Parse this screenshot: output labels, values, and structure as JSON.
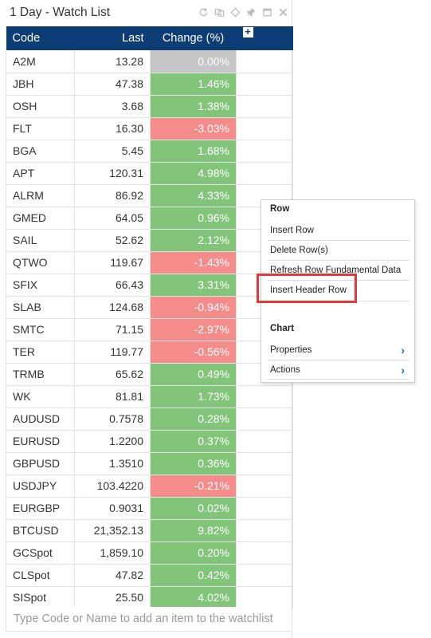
{
  "window": {
    "title": "1 Day - Watch List",
    "icons": [
      "refresh-icon",
      "link-icon",
      "diamond-icon",
      "pin-icon",
      "maximize-icon",
      "close-icon"
    ]
  },
  "table": {
    "headers": {
      "code": "Code",
      "last": "Last",
      "change": "Change (%)",
      "add": "+"
    },
    "rows": [
      {
        "code": "A2M",
        "last": "13.28",
        "change": "0.00%",
        "dir": "flat"
      },
      {
        "code": "JBH",
        "last": "47.38",
        "change": "1.46%",
        "dir": "up"
      },
      {
        "code": "OSH",
        "last": "3.68",
        "change": "1.38%",
        "dir": "up"
      },
      {
        "code": "FLT",
        "last": "16.30",
        "change": "-3.03%",
        "dir": "down"
      },
      {
        "code": "BGA",
        "last": "5.45",
        "change": "1.68%",
        "dir": "up"
      },
      {
        "code": "APT",
        "last": "120.31",
        "change": "4.98%",
        "dir": "up"
      },
      {
        "code": "ALRM",
        "last": "86.92",
        "change": "4.33%",
        "dir": "up"
      },
      {
        "code": "GMED",
        "last": "64.05",
        "change": "0.96%",
        "dir": "up"
      },
      {
        "code": "SAIL",
        "last": "52.62",
        "change": "2.12%",
        "dir": "up"
      },
      {
        "code": "QTWO",
        "last": "119.67",
        "change": "-1.43%",
        "dir": "down"
      },
      {
        "code": "SFIX",
        "last": "66.43",
        "change": "3.31%",
        "dir": "up"
      },
      {
        "code": "SLAB",
        "last": "124.68",
        "change": "-0.94%",
        "dir": "down"
      },
      {
        "code": "SMTC",
        "last": "71.15",
        "change": "-2.97%",
        "dir": "down"
      },
      {
        "code": "TER",
        "last": "119.77",
        "change": "-0.56%",
        "dir": "down"
      },
      {
        "code": "TRMB",
        "last": "65.62",
        "change": "0.49%",
        "dir": "up"
      },
      {
        "code": "WK",
        "last": "81.81",
        "change": "1.73%",
        "dir": "up"
      },
      {
        "code": "AUDUSD",
        "last": "0.7578",
        "change": "0.28%",
        "dir": "up"
      },
      {
        "code": "EURUSD",
        "last": "1.2200",
        "change": "0.37%",
        "dir": "up"
      },
      {
        "code": "GBPUSD",
        "last": "1.3510",
        "change": "0.36%",
        "dir": "up"
      },
      {
        "code": "USDJPY",
        "last": "103.4220",
        "change": "-0.21%",
        "dir": "down"
      },
      {
        "code": "EURGBP",
        "last": "0.9031",
        "change": "0.02%",
        "dir": "up"
      },
      {
        "code": "BTCUSD",
        "last": "21,352.13",
        "change": "9.82%",
        "dir": "up"
      },
      {
        "code": "GCSpot",
        "last": "1,859.10",
        "change": "0.20%",
        "dir": "up"
      },
      {
        "code": "CLSpot",
        "last": "47.82",
        "change": "0.42%",
        "dir": "up"
      },
      {
        "code": "SISpot",
        "last": "25.50",
        "change": "4.02%",
        "dir": "up"
      }
    ]
  },
  "add_input": {
    "placeholder": "Type Code or Name to add an item to the watchlist"
  },
  "colors": {
    "header": "#0d3d75",
    "up": "#82c57a",
    "down": "#f58c8c",
    "flat": "#c6c6c6",
    "highlight": "#e23a3a",
    "chevron": "#1b6fc2"
  },
  "context_menu": {
    "row_section": "Row",
    "insert_row": "Insert Row",
    "delete_rows": "Delete Row(s)",
    "refresh_fundamental": "Refresh Row Fundamental Data",
    "insert_header_row": "Insert Header Row",
    "chart_section": "Chart",
    "properties": "Properties",
    "actions": "Actions",
    "chevron": "›"
  }
}
